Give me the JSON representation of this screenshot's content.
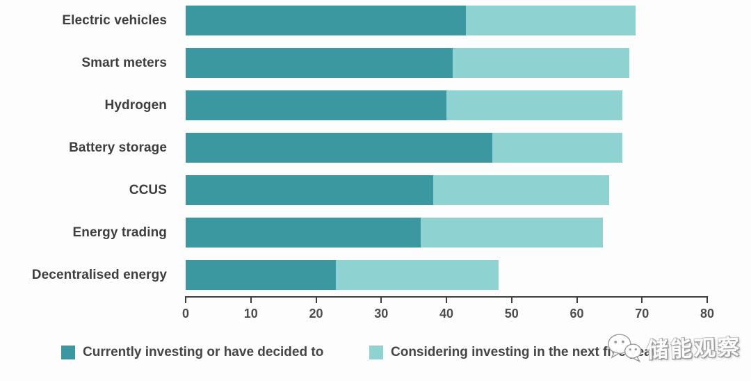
{
  "chart_data": {
    "type": "bar",
    "orientation": "horizontal",
    "title": "",
    "categories": [
      "Electric vehicles",
      "Smart meters",
      "Hydrogen",
      "Battery storage",
      "CCUS",
      "Energy trading",
      "Decentralised energy"
    ],
    "series": [
      {
        "name": "Currently investing or have decided to",
        "color": "#3b98a1",
        "values": [
          43,
          41,
          40,
          47,
          38,
          36,
          23
        ]
      },
      {
        "name": "Considering investing in the next five years",
        "color": "#8fd2d2",
        "values": [
          26,
          27,
          27,
          20,
          27,
          28,
          25
        ]
      }
    ],
    "totals": [
      69,
      68,
      67,
      67,
      65,
      64,
      48
    ],
    "xlim": [
      0,
      80
    ],
    "xticks": [
      0,
      10,
      20,
      30,
      40,
      50,
      60,
      70,
      80
    ],
    "grid": false,
    "legend_position": "bottom"
  },
  "colors": {
    "bar_dark": "#3b98a1",
    "bar_light": "#8fd2d2",
    "axis": "#3f3f3f",
    "label_text": "#3e3e40",
    "background": "#fdfdfd"
  },
  "watermark": {
    "icon": "wechat-logo-icon",
    "text": "储能观察"
  }
}
